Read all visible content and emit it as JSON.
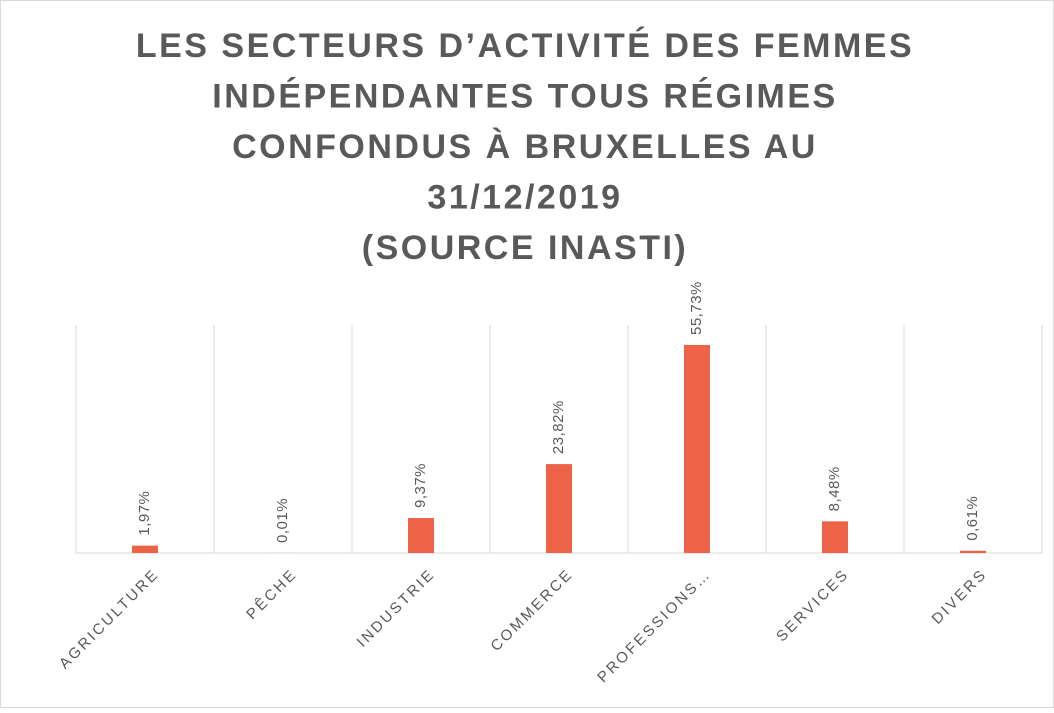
{
  "chart_data": {
    "type": "bar",
    "title": [
      "LES SECTEURS D’ACTIVITÉ DES FEMMES",
      "INDÉPENDANTES TOUS RÉGIMES",
      "CONFONDUS À BRUXELLES AU",
      "31/12/2019",
      "(SOURCE INASTI)"
    ],
    "categories": [
      "AGRICULTURE",
      "PÊCHE",
      "INDUSTRIE",
      "COMMERCE",
      "PROFESSIONS…",
      "SERVICES",
      "DIVERS"
    ],
    "values": [
      1.97,
      0.01,
      9.37,
      23.82,
      55.73,
      8.48,
      0.61
    ],
    "value_labels": [
      "1,97%",
      "0,01%",
      "9,37%",
      "23,82%",
      "55,73%",
      "8,48%",
      "0,61%"
    ],
    "color": "#ed6347"
  }
}
